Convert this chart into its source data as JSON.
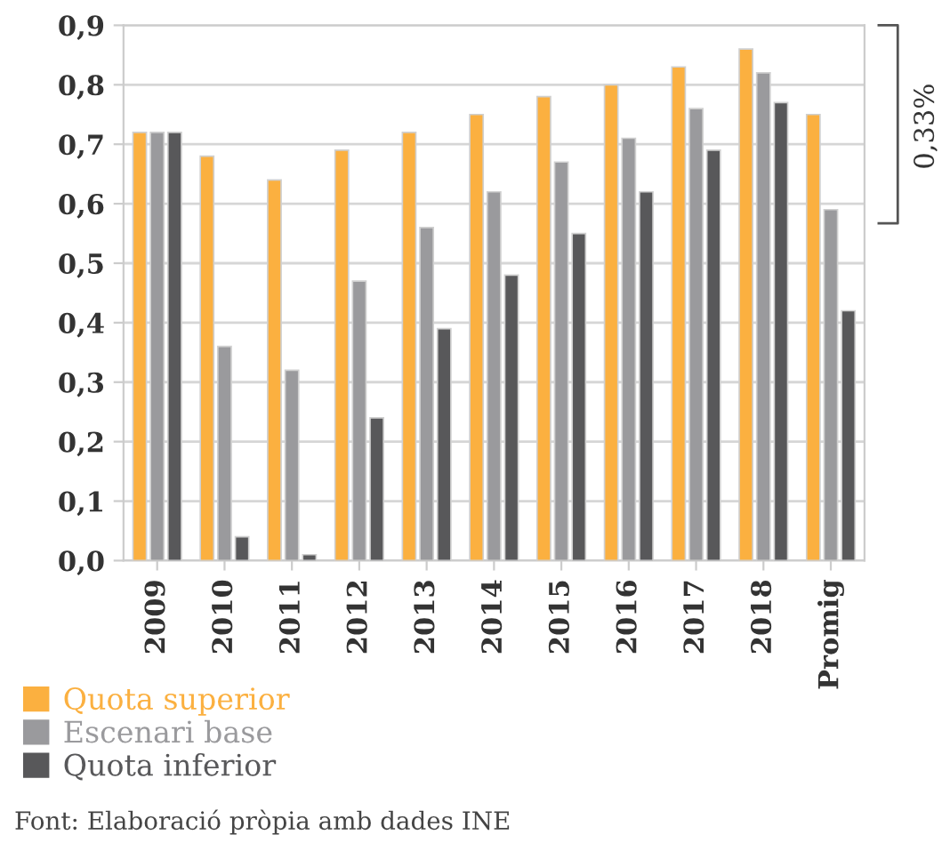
{
  "chart_data": {
    "type": "bar",
    "categories": [
      "2009",
      "2010",
      "2011",
      "2012",
      "2013",
      "2014",
      "2015",
      "2016",
      "2017",
      "2018",
      "Promig"
    ],
    "series": [
      {
        "name": "Quota superior",
        "color": "#fbb040",
        "values": [
          0.72,
          0.68,
          0.64,
          0.69,
          0.72,
          0.75,
          0.78,
          0.8,
          0.83,
          0.86,
          0.75
        ]
      },
      {
        "name": "Escenari base",
        "color": "#9a9a9d",
        "values": [
          0.72,
          0.36,
          0.32,
          0.47,
          0.56,
          0.62,
          0.67,
          0.71,
          0.76,
          0.82,
          0.59
        ]
      },
      {
        "name": "Quota inferior",
        "color": "#58585a",
        "values": [
          0.72,
          0.04,
          0.01,
          0.24,
          0.39,
          0.48,
          0.55,
          0.62,
          0.69,
          0.77,
          0.42
        ]
      }
    ],
    "ylim": [
      0,
      0.9
    ],
    "yticks": [
      {
        "value": 0,
        "label": "0,0"
      },
      {
        "value": 0.1,
        "label": "0,1"
      },
      {
        "value": 0.2,
        "label": "0,2"
      },
      {
        "value": 0.3,
        "label": "0,3"
      },
      {
        "value": 0.4,
        "label": "0,4"
      },
      {
        "value": 0.5,
        "label": "0,5"
      },
      {
        "value": 0.6,
        "label": "0,6"
      },
      {
        "value": 0.7,
        "label": "0,7"
      },
      {
        "value": 0.8,
        "label": "0,8"
      },
      {
        "value": 0.9,
        "label": "0,9"
      }
    ],
    "grid": "y",
    "legend": "bottom left",
    "annotations": [
      "0,33%",
      "Font: Elaboració pròpia amb dades INE"
    ]
  }
}
